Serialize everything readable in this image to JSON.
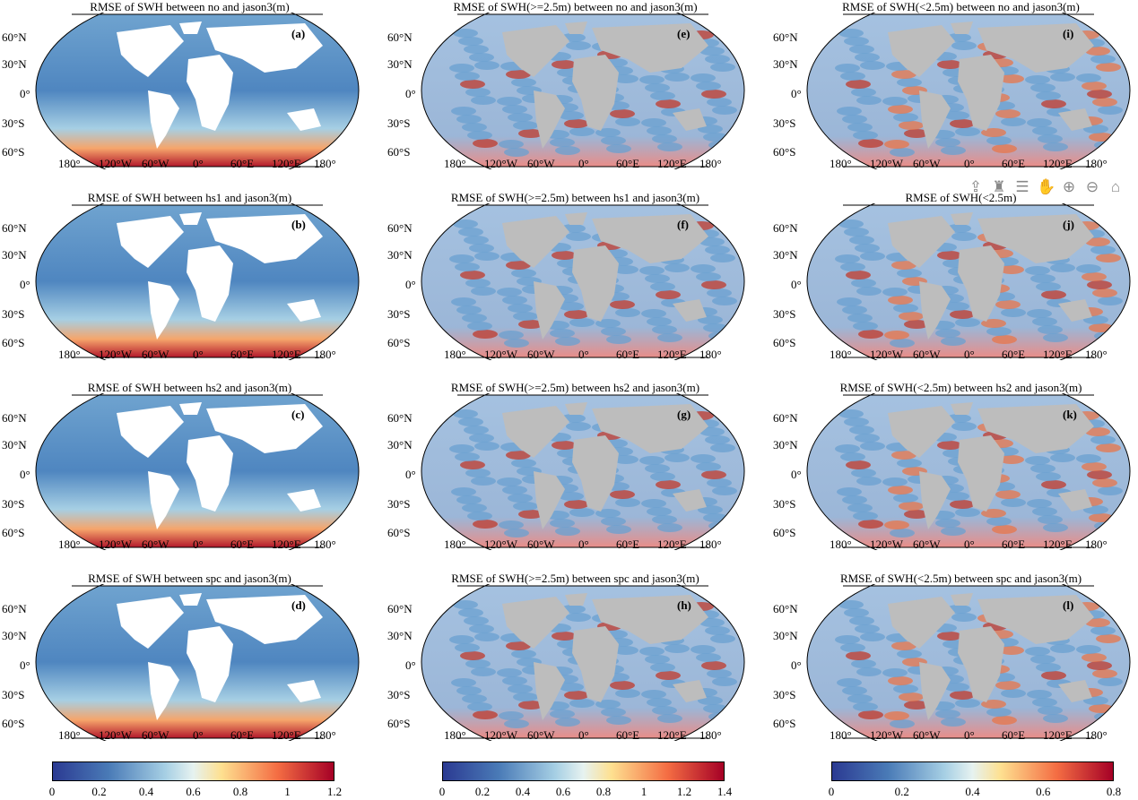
{
  "panels": [
    {
      "title": "RMSE of SWH between no and jason3(m)",
      "label": "(a)",
      "kind": "all"
    },
    {
      "title": "RMSE of SWH(>=2.5m) between no and jason3(m)",
      "label": "(e)",
      "kind": "high"
    },
    {
      "title": "RMSE of SWH(<2.5m) between no and jason3(m)",
      "label": "(i)",
      "kind": "low"
    },
    {
      "title": "RMSE of SWH between hs1 and jason3(m)",
      "label": "(b)",
      "kind": "all"
    },
    {
      "title": "RMSE of SWH(>=2.5m) between hs1 and jason3(m)",
      "label": "(f)",
      "kind": "high"
    },
    {
      "title": "RMSE of SWH(<2.5m)",
      "label": "(j)",
      "kind": "low"
    },
    {
      "title": "RMSE of SWH between hs2 and jason3(m)",
      "label": "(c)",
      "kind": "all"
    },
    {
      "title": "RMSE of SWH(>=2.5m) between hs2 and jason3(m)",
      "label": "(g)",
      "kind": "high"
    },
    {
      "title": "RMSE of SWH(<2.5m) between hs2 and jason3(m)",
      "label": "(k)",
      "kind": "low"
    },
    {
      "title": "RMSE of SWH between spc and jason3(m)",
      "label": "(d)",
      "kind": "all"
    },
    {
      "title": "RMSE of SWH(>=2.5m) between spc and jason3(m)",
      "label": "(h)",
      "kind": "high"
    },
    {
      "title": "RMSE of SWH(<2.5m) between spc and jason3(m)",
      "label": "(l)",
      "kind": "low"
    }
  ],
  "lat_labels": [
    "60°N",
    "30°N",
    "0°",
    "30°S",
    "60°S"
  ],
  "lon_labels": [
    "180°",
    "120°W",
    "60°W",
    "0°",
    "60°E",
    "120°E",
    "180°"
  ],
  "colorbars": [
    {
      "ticks": [
        "0",
        "0.2",
        "0.4",
        "0.6",
        "0.8",
        "1",
        "1.2"
      ]
    },
    {
      "ticks": [
        "0",
        "0.2",
        "0.4",
        "0.6",
        "0.8",
        "1",
        "1.2",
        "1.4"
      ]
    },
    {
      "ticks": [
        "0",
        "0.2",
        "0.4",
        "0.6",
        "0.8"
      ]
    }
  ],
  "toolbar": [
    "export-icon",
    "brush-icon",
    "legend-icon",
    "pan-hand-icon",
    "zoom-in-icon",
    "zoom-out-icon",
    "home-icon"
  ],
  "toolbar_glyphs": [
    "⇪",
    "♜",
    "☰",
    "✋",
    "⊕",
    "⊖",
    "⌂"
  ],
  "colors": {
    "low": "#2b3a92",
    "mid": "#e6f2f0",
    "high": "#a50026",
    "land": "#bdbdbd"
  }
}
